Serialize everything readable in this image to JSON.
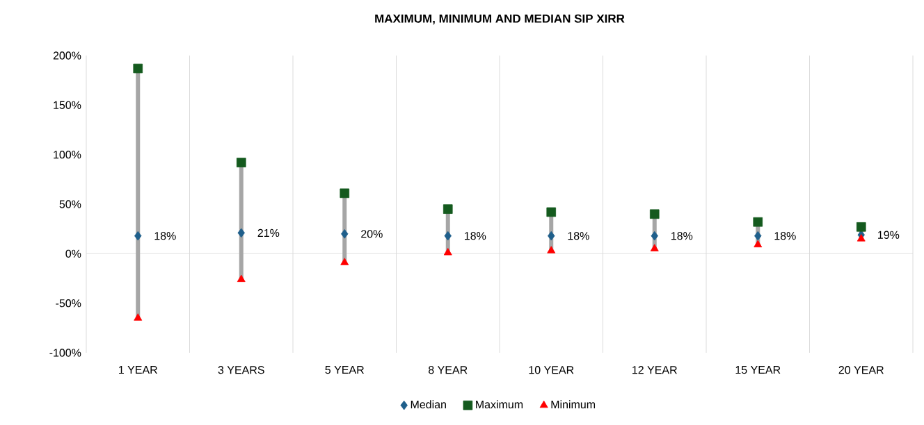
{
  "chart_data": {
    "type": "scatter",
    "title": "MAXIMUM, MINIMUM AND MEDIAN SIP XIRR",
    "categories": [
      "1 YEAR",
      "3 YEARS",
      "5 YEAR",
      "8 YEAR",
      "10 YEAR",
      "12 YEAR",
      "15 YEAR",
      "20 YEAR"
    ],
    "series": [
      {
        "name": "Median",
        "color": "#1f5f8b",
        "marker": "diamond",
        "values": [
          18,
          21,
          20,
          18,
          18,
          18,
          18,
          19
        ],
        "value_labels": [
          "18%",
          "21%",
          "20%",
          "18%",
          "18%",
          "18%",
          "18%",
          "19%"
        ]
      },
      {
        "name": "Maximum",
        "color": "#145a1e",
        "marker": "square",
        "values": [
          187,
          92,
          61,
          45,
          42,
          40,
          32,
          27
        ]
      },
      {
        "name": "Minimum",
        "color": "#ff0000",
        "marker": "triangle",
        "values": [
          -65,
          -26,
          -9,
          1,
          3,
          5,
          9,
          15
        ]
      }
    ],
    "ylim": [
      -100,
      200
    ],
    "yticks": [
      {
        "value": -100,
        "label": "-100%"
      },
      {
        "value": -50,
        "label": "-50%"
      },
      {
        "value": 0,
        "label": "0%"
      },
      {
        "value": 50,
        "label": "50%"
      },
      {
        "value": 100,
        "label": "100%"
      },
      {
        "value": 150,
        "label": "150%"
      },
      {
        "value": 200,
        "label": "200%"
      }
    ],
    "ref_lines": [
      {
        "axis": "y",
        "value": 0,
        "color": "#d9d9d9"
      }
    ],
    "grid": "x",
    "legend": "bottom"
  }
}
